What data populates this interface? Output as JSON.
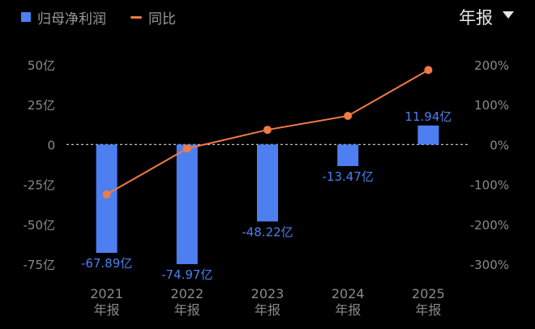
{
  "legend": {
    "bar_label": "归母净利润",
    "line_label": "同比"
  },
  "period_selector": {
    "label": "年报"
  },
  "colors": {
    "bar": "#4d7ff0",
    "line": "#ef7b45",
    "bar_label": "#4d7ff0",
    "axis_text": "#8a8a8a",
    "gridline": "#444444",
    "zero_line": "#bdbdbd"
  },
  "chart_data": {
    "type": "bar",
    "categories": [
      "2021\n年报",
      "2022\n年报",
      "2023\n年报",
      "2024\n年报",
      "2025\n年报"
    ],
    "series": [
      {
        "name": "归母净利润",
        "type": "bar",
        "axis": "left",
        "values": [
          -67.89,
          -74.97,
          -48.22,
          -13.47,
          11.94
        ],
        "labels": [
          "-67.89亿",
          "-74.97亿",
          "-48.22亿",
          "-13.47亿",
          "11.94亿"
        ]
      },
      {
        "name": "同比",
        "type": "line",
        "axis": "right",
        "values": [
          -125,
          -10,
          37,
          72,
          187
        ]
      }
    ],
    "y_left": {
      "ticks": [
        50,
        25,
        0,
        -25,
        -50,
        -75
      ],
      "tick_labels": [
        "50亿",
        "25亿",
        "0",
        "-25亿",
        "-50亿",
        "-75亿"
      ],
      "ylim": [
        -75,
        50
      ]
    },
    "y_right": {
      "ticks": [
        200,
        100,
        0,
        -100,
        -200,
        -300
      ],
      "tick_labels": [
        "200%",
        "100%",
        "0%",
        "-100%",
        "-200%",
        "-300%"
      ],
      "ylim": [
        -300,
        200
      ]
    },
    "grid": true,
    "legend_position": "top-left"
  }
}
